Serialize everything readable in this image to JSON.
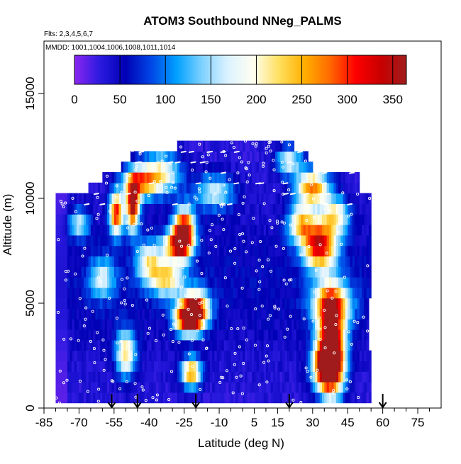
{
  "chart_data": {
    "type": "heatmap",
    "title": "ATOM3 Southbound NNeg_PALMS",
    "subtitle_flights": "Flts: 2,3,4,5,6,7",
    "subtitle_dates": "MMDD: 1001,1004,1006,1008,1011,1014",
    "xlabel": "Latitude (deg N)",
    "ylabel": "Altitude (m)",
    "xlim": [
      -85,
      85
    ],
    "ylim": [
      0,
      17500
    ],
    "x_ticks": [
      -85,
      -70,
      -55,
      -40,
      -25,
      -10,
      5,
      15,
      30,
      45,
      60,
      75
    ],
    "x_tick_labels": [
      "-85",
      "-70",
      "-55",
      "-40",
      "-25",
      "-10",
      "5",
      "15",
      "30",
      "45",
      "60",
      "75"
    ],
    "x_minor_ticks": [
      -80,
      -75,
      -65,
      -60,
      -50,
      -45,
      -35,
      -30,
      -20,
      -15,
      -5,
      0,
      10,
      20,
      25,
      35,
      40,
      50,
      55,
      65,
      70,
      80
    ],
    "y_ticks": [
      0,
      5000,
      10000,
      15000
    ],
    "y_tick_labels": [
      "0",
      "5000",
      "10000",
      "15000"
    ],
    "colorbar": {
      "min": 0,
      "max": 365,
      "ticks": [
        0,
        50,
        100,
        150,
        200,
        250,
        300,
        350
      ],
      "tick_labels": [
        "0",
        "50",
        "100",
        "150",
        "200",
        "250",
        "300",
        "350"
      ],
      "colors": [
        "#8b26f0",
        "#2b1ae0",
        "#0000b4",
        "#0046e6",
        "#00a0ff",
        "#7fd2ff",
        "#dcf2ff",
        "#fffff0",
        "#ffe060",
        "#ffb000",
        "#ff6a00",
        "#ff0000",
        "#c80000",
        "#a01c1c"
      ]
    },
    "altitude_levels_m": [
      500,
      1000,
      1500,
      2000,
      2500,
      3000,
      3500,
      4000,
      4500,
      5000,
      5500,
      6000,
      6500,
      7000,
      7500,
      8000,
      8500,
      9000,
      9500,
      10000,
      10500,
      11000,
      11500,
      12000,
      12500
    ],
    "latitude_extent_deg": [
      [
        -80,
        55
      ],
      [
        -80,
        55
      ],
      [
        -80,
        55
      ],
      [
        -80,
        55
      ],
      [
        -80,
        55
      ],
      [
        -80,
        54
      ],
      [
        -80,
        54
      ],
      [
        -80,
        54
      ],
      [
        -80,
        54
      ],
      [
        -80,
        54
      ],
      [
        -80,
        55
      ],
      [
        -80,
        55
      ],
      [
        -80,
        55
      ],
      [
        -80,
        55
      ],
      [
        -80,
        55
      ],
      [
        -80,
        55
      ],
      [
        -80,
        55
      ],
      [
        -80,
        55
      ],
      [
        -80,
        55
      ],
      [
        -80,
        55
      ],
      [
        -66,
        50
      ],
      [
        -60,
        50
      ],
      [
        -52,
        30
      ],
      [
        -48,
        28
      ],
      [
        -28,
        22
      ]
    ],
    "features": [
      {
        "lat": -23,
        "alt": 4300,
        "peak": 330,
        "w_lat": 4,
        "h_alt": 500
      },
      {
        "lat": -20,
        "alt": 4800,
        "peak": 240,
        "w_lat": 4,
        "h_alt": 600
      },
      {
        "lat": -25,
        "alt": 8500,
        "peak": 320,
        "w_lat": 3,
        "h_alt": 700
      },
      {
        "lat": -28,
        "alt": 7800,
        "peak": 250,
        "w_lat": 4,
        "h_alt": 500
      },
      {
        "lat": -47,
        "alt": 9700,
        "peak": 320,
        "w_lat": 2,
        "h_alt": 800
      },
      {
        "lat": -54,
        "alt": 9300,
        "peak": 280,
        "w_lat": 2,
        "h_alt": 700
      },
      {
        "lat": -44,
        "alt": 10800,
        "peak": 200,
        "w_lat": 5,
        "h_alt": 500
      },
      {
        "lat": -35,
        "alt": 11200,
        "peak": 170,
        "w_lat": 6,
        "h_alt": 700
      },
      {
        "lat": -22,
        "alt": 1700,
        "peak": 230,
        "w_lat": 3,
        "h_alt": 500
      },
      {
        "lat": -50,
        "alt": 2600,
        "peak": 180,
        "w_lat": 3,
        "h_alt": 800
      },
      {
        "lat": -32,
        "alt": 6200,
        "peak": 170,
        "w_lat": 5,
        "h_alt": 600
      },
      {
        "lat": -40,
        "alt": 7000,
        "peak": 150,
        "w_lat": 4,
        "h_alt": 700
      },
      {
        "lat": 38,
        "alt": 3000,
        "peak": 360,
        "w_lat": 4,
        "h_alt": 1600
      },
      {
        "lat": 36,
        "alt": 2000,
        "peak": 290,
        "w_lat": 4,
        "h_alt": 700
      },
      {
        "lat": 33,
        "alt": 7800,
        "peak": 290,
        "w_lat": 5,
        "h_alt": 800
      },
      {
        "lat": 30,
        "alt": 10500,
        "peak": 240,
        "w_lat": 5,
        "h_alt": 600
      },
      {
        "lat": 25,
        "alt": 8800,
        "peak": 180,
        "w_lat": 4,
        "h_alt": 600
      },
      {
        "lat": 38,
        "alt": 5000,
        "peak": 170,
        "w_lat": 6,
        "h_alt": 700
      },
      {
        "lat": 40,
        "alt": 9200,
        "peak": 160,
        "w_lat": 4,
        "h_alt": 600
      },
      {
        "lat": 20,
        "alt": 11800,
        "peak": 140,
        "w_lat": 4,
        "h_alt": 500
      },
      {
        "lat": -12,
        "alt": 10300,
        "peak": 130,
        "w_lat": 6,
        "h_alt": 600
      },
      {
        "lat": -60,
        "alt": 6200,
        "peak": 120,
        "w_lat": 4,
        "h_alt": 700
      },
      {
        "lat": -70,
        "alt": 8800,
        "peak": 120,
        "w_lat": 3,
        "h_alt": 500
      }
    ],
    "profile_arrows_lat": [
      -56,
      -45,
      -20,
      20,
      60
    ]
  }
}
